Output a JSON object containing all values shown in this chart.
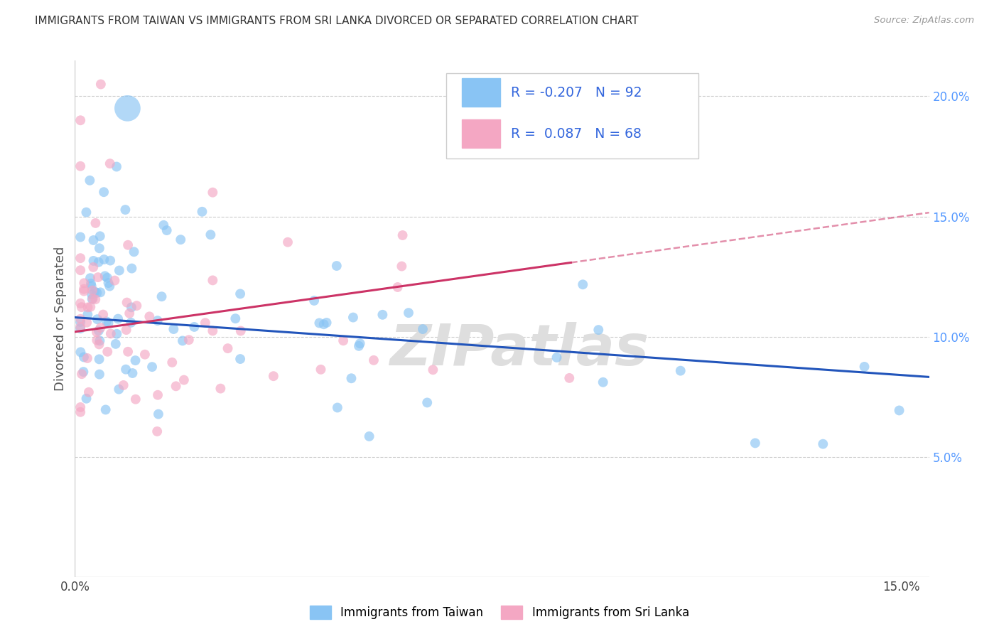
{
  "title": "IMMIGRANTS FROM TAIWAN VS IMMIGRANTS FROM SRI LANKA DIVORCED OR SEPARATED CORRELATION CHART",
  "source": "Source: ZipAtlas.com",
  "ylabel": "Divorced or Separated",
  "legend1_label": "Immigrants from Taiwan",
  "legend2_label": "Immigrants from Sri Lanka",
  "xlim": [
    0.0,
    0.155
  ],
  "ylim": [
    0.0,
    0.215
  ],
  "x_ticks": [
    0.0,
    0.03,
    0.06,
    0.09,
    0.12,
    0.15
  ],
  "x_tick_labels": [
    "0.0%",
    "",
    "",
    "",
    "",
    "15.0%"
  ],
  "y_ticks_right": [
    0.05,
    0.1,
    0.15,
    0.2
  ],
  "y_tick_labels_right": [
    "5.0%",
    "10.0%",
    "15.0%",
    "20.0%"
  ],
  "color_taiwan": "#89C4F4",
  "color_srilanka": "#F4A7C3",
  "color_taiwan_line": "#2255BB",
  "color_srilanka_line": "#CC3366",
  "watermark": "ZIPatlas",
  "taiwan_R": -0.207,
  "taiwan_N": 92,
  "srilanka_R": 0.087,
  "srilanka_N": 68
}
